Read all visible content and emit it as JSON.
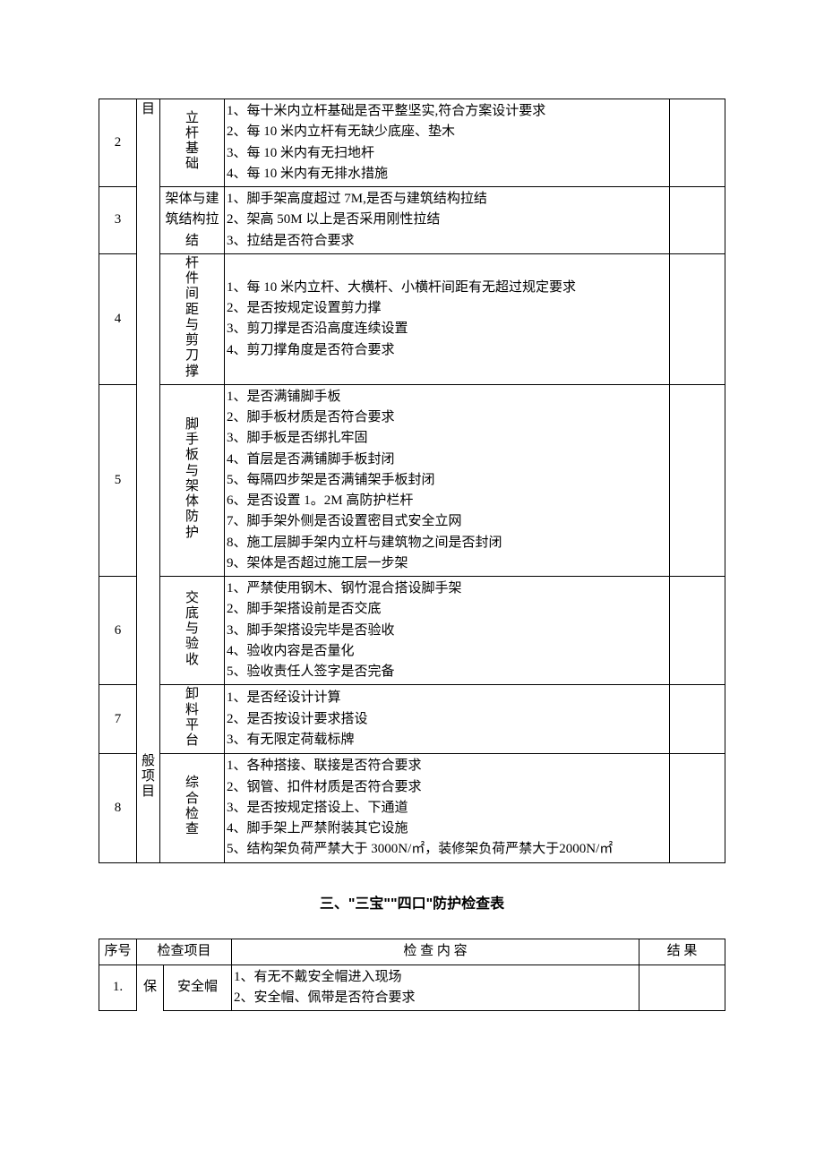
{
  "table1": {
    "categoryTop": "目",
    "categoryBottom": "般项目",
    "rows": [
      {
        "seq": "2",
        "item": "立杆基础",
        "content": "1、每十米内立杆基础是否平整坚实,符合方案设计要求\n2、每 10 米内立杆有无缺少底座、垫木\n3、每 10 米内有无扫地杆\n4、每 10 米内有无排水措施",
        "result": ""
      },
      {
        "seq": "3",
        "item": "架体与建筑结构拉结",
        "content": "1、脚手架高度超过 7M,是否与建筑结构拉结\n2、架高 50M 以上是否采用刚性拉结\n3、拉结是否符合要求",
        "result": ""
      },
      {
        "seq": "4",
        "item": "杆件间距与剪刀撑",
        "content": "1、每 10 米内立杆、大横杆、小横杆间距有无超过规定要求\n2、是否按规定设置剪力撑\n3、剪刀撑是否沿高度连续设置\n4、剪刀撑角度是否符合要求",
        "result": ""
      },
      {
        "seq": "5",
        "item": "脚手板与架体防护",
        "content": "1、是否满铺脚手板\n2、脚手板材质是否符合要求\n3、脚手板是否绑扎牢固\n4、首层是否满铺脚手板封闭\n5、每隔四步架是否满铺架手板封闭\n6、是否设置 1。2M 高防护栏杆\n7、脚手架外侧是否设置密目式安全立网\n8、施工层脚手架内立杆与建筑物之间是否封闭\n9、架体是否超过施工层一步架",
        "result": ""
      },
      {
        "seq": "6",
        "item": "交底与验收",
        "content": "1、严禁使用钢木、钢竹混合搭设脚手架\n2、脚手架搭设前是否交底\n3、脚手架搭设完毕是否验收\n4、验收内容是否量化\n5、验收责任人签字是否完备",
        "result": ""
      },
      {
        "seq": "7",
        "item": "卸料平台",
        "content": "1、是否经设计计算\n2、是否按设计要求搭设\n3、有无限定荷载标牌",
        "result": ""
      },
      {
        "seq": "8",
        "item": "综合检查",
        "content": "1、各种搭接、联接是否符合要求\n2、钢管、扣件材质是否符合要求\n3、是否按规定搭设上、下通道\n4、脚手架上严禁附装其它设施\n5、结构架负荷严禁大于 3000N/㎡，装修架负荷严禁大于2000N/㎡",
        "result": ""
      }
    ]
  },
  "section3": {
    "title": "三、\"三宝\"\"四口\"防护检查表",
    "headers": {
      "seq": "序号",
      "item": "检查项目",
      "content": "检 查 内 容",
      "result": "结 果"
    },
    "rows": [
      {
        "seq": "1.",
        "cat": "保",
        "item": "安全帽",
        "content": "1、有无不戴安全帽进入现场\n2、安全帽、佩带是否符合要求",
        "result": ""
      }
    ]
  }
}
